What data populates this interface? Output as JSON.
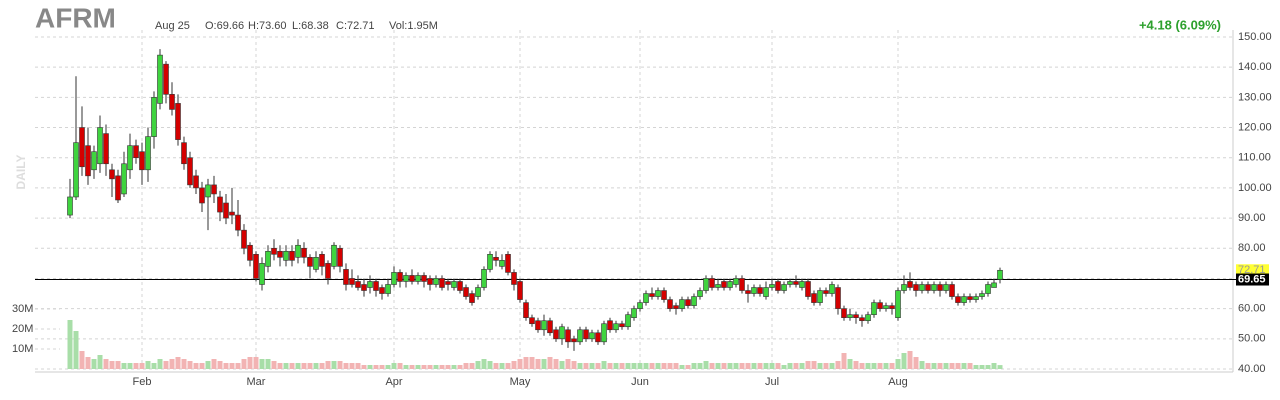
{
  "chart_data": {
    "type": "candlestick",
    "title": "AFRM",
    "date": "Aug 25",
    "ohlc_labels": [
      "O:69.66",
      "H:73.60",
      "L:68.38",
      "C:72.71"
    ],
    "volume_label": "Vol:1.95M",
    "change": "+4.18 (6.09%)",
    "period": "DAILY",
    "up_color": "#3fd43f",
    "down_color": "#d40000",
    "volume_up_color": "#a8dea8",
    "volume_down_color": "#f2b3b3",
    "grid": true,
    "categories": [
      null,
      null,
      null,
      null,
      null,
      null,
      null,
      null,
      null,
      null,
      null,
      null,
      "Feb",
      null,
      null,
      null,
      null,
      null,
      null,
      null,
      null,
      null,
      null,
      null,
      null,
      null,
      null,
      null,
      null,
      null,
      null,
      "Mar",
      null,
      null,
      null,
      null,
      null,
      null,
      null,
      null,
      null,
      null,
      null,
      null,
      null,
      null,
      null,
      null,
      null,
      null,
      null,
      null,
      null,
      null,
      "Apr",
      null,
      null,
      null,
      null,
      null,
      null,
      null,
      null,
      null,
      null,
      null,
      null,
      null,
      null,
      null,
      null,
      null,
      null,
      null,
      null,
      "May",
      null,
      null,
      null,
      null,
      null,
      null,
      null,
      null,
      null,
      null,
      null,
      null,
      null,
      null,
      null,
      null,
      null,
      null,
      null,
      "Jun",
      null,
      null,
      null,
      null,
      null,
      null,
      null,
      null,
      null,
      null,
      null,
      null,
      null,
      null,
      null,
      null,
      null,
      null,
      null,
      null,
      null,
      "Jul",
      null,
      null,
      null,
      null,
      null,
      null,
      null,
      null,
      null,
      null,
      null,
      null,
      null,
      null,
      null,
      null,
      null,
      null,
      null,
      null,
      "Aug",
      null,
      null,
      null,
      null,
      null,
      null,
      null,
      null,
      null,
      null,
      null,
      null,
      null,
      null,
      null,
      null,
      null
    ],
    "open": [
      91,
      97,
      120,
      114,
      106,
      108,
      118,
      106,
      104,
      98,
      106,
      114,
      112,
      106,
      117,
      128,
      141,
      131,
      128,
      115,
      110,
      104,
      100,
      97,
      101,
      97,
      95,
      92,
      91,
      86,
      81,
      78,
      68,
      74,
      80,
      79,
      76,
      79,
      77,
      80,
      77,
      73,
      78,
      75,
      74,
      80,
      73,
      70,
      69,
      68,
      67,
      69,
      67,
      65,
      68,
      72,
      69,
      71,
      69,
      71,
      70,
      68,
      70,
      69,
      67,
      69,
      67,
      65,
      64,
      67,
      73,
      77,
      74,
      78,
      72,
      69,
      62,
      57,
      56,
      53,
      56,
      53,
      50,
      53,
      50,
      49,
      53,
      50,
      52,
      49,
      56,
      53,
      55,
      54,
      57,
      60,
      62,
      65,
      64,
      66,
      63,
      61,
      60,
      63,
      61,
      64,
      66,
      70,
      67,
      69,
      67,
      68,
      70,
      66,
      65,
      67,
      64,
      67,
      69,
      66,
      68,
      69,
      67,
      69,
      65,
      62,
      66,
      65,
      67,
      60,
      57,
      58,
      57,
      56,
      58,
      62,
      60,
      61,
      57,
      66,
      69,
      68,
      66,
      68,
      66,
      68,
      66,
      68,
      64,
      62,
      64,
      63,
      64,
      65,
      67,
      69.66
    ],
    "high": [
      103,
      137,
      127,
      120,
      114,
      124,
      121,
      108,
      106,
      112,
      118,
      116,
      115,
      120,
      132,
      146,
      142,
      135,
      131,
      117,
      112,
      106,
      102,
      103,
      104,
      99,
      98,
      100,
      96,
      88,
      82,
      79,
      77,
      81,
      83,
      81,
      81,
      81,
      83,
      82,
      78,
      79,
      79,
      76,
      82,
      81,
      75,
      73,
      71,
      70,
      71,
      70,
      68,
      70,
      74,
      73,
      72,
      73,
      72,
      72,
      71,
      71,
      71,
      70,
      70,
      70,
      68,
      66,
      68,
      74,
      79,
      79,
      78,
      79,
      73,
      70,
      63,
      58,
      57,
      58,
      57,
      54,
      55,
      54,
      51,
      54,
      54,
      53,
      53,
      56,
      57,
      56,
      56,
      59,
      61,
      63,
      66,
      67,
      67,
      67,
      64,
      62,
      64,
      64,
      65,
      67,
      71,
      71,
      70,
      70,
      70,
      71,
      71,
      68,
      68,
      68,
      69,
      70,
      70,
      69,
      70,
      71,
      70,
      70,
      66,
      67,
      67,
      69,
      68,
      61,
      60,
      59,
      58,
      59,
      63,
      63,
      62,
      62,
      67,
      71,
      72,
      69,
      69,
      69,
      69,
      69,
      69,
      69,
      65,
      65,
      65,
      65,
      66,
      69,
      70,
      73.6
    ],
    "low": [
      90,
      96,
      104,
      101,
      103,
      105,
      104,
      97,
      95,
      97,
      103,
      108,
      101,
      102,
      113,
      126,
      128,
      124,
      114,
      106,
      100,
      98,
      92,
      86,
      95,
      89,
      88,
      88,
      84,
      78,
      74,
      69,
      66,
      72,
      76,
      74,
      74,
      74,
      75,
      75,
      70,
      72,
      71,
      68,
      73,
      72,
      66,
      67,
      66,
      64,
      65,
      64,
      63,
      64,
      67,
      67,
      67,
      68,
      68,
      67,
      66,
      67,
      66,
      66,
      66,
      65,
      63,
      61,
      63,
      66,
      72,
      74,
      73,
      71,
      66,
      62,
      56,
      54,
      52,
      51,
      51,
      49,
      48,
      47,
      46,
      48,
      49,
      49,
      48,
      48,
      52,
      52,
      53,
      53,
      56,
      59,
      61,
      63,
      63,
      62,
      59,
      58,
      59,
      60,
      60,
      63,
      65,
      66,
      66,
      66,
      66,
      67,
      65,
      62,
      64,
      64,
      63,
      66,
      65,
      65,
      67,
      67,
      66,
      63,
      61,
      61,
      64,
      64,
      58,
      56,
      56,
      55,
      54,
      55,
      57,
      59,
      59,
      58,
      56,
      65,
      66,
      64,
      65,
      65,
      65,
      64,
      65,
      63,
      61,
      61,
      62,
      62,
      63,
      64,
      67,
      68.38
    ],
    "close": [
      97,
      115,
      107,
      104,
      112,
      120,
      108,
      103,
      96,
      108,
      114,
      110,
      106,
      117,
      130,
      144,
      131,
      126,
      116,
      108,
      101,
      100,
      95,
      101,
      98,
      92,
      90,
      91,
      86,
      80,
      76,
      70,
      75,
      79,
      78,
      77,
      79,
      76,
      81,
      77,
      74,
      77,
      74,
      70,
      81,
      74,
      68,
      68,
      67,
      66,
      69,
      66,
      65,
      68,
      72,
      69,
      71,
      69,
      71,
      69,
      68,
      70,
      67,
      68,
      69,
      66,
      64,
      62,
      67,
      73,
      78,
      76,
      76,
      72,
      68,
      63,
      57,
      55,
      53,
      56,
      52,
      50,
      54,
      49,
      49,
      53,
      50,
      52,
      49,
      55,
      53,
      55,
      54,
      58,
      60,
      62,
      65,
      64,
      66,
      63,
      60,
      60,
      63,
      61,
      64,
      66,
      70,
      67,
      68,
      67,
      69,
      70,
      66,
      65,
      67,
      65,
      67,
      68,
      66,
      68,
      69,
      68,
      69,
      64,
      62,
      66,
      65,
      68,
      60,
      57,
      58,
      57,
      56,
      58,
      62,
      60,
      61,
      60,
      66,
      68,
      67,
      66,
      68,
      66,
      68,
      66,
      68,
      64,
      62,
      64,
      63,
      64,
      65,
      68,
      68.53,
      72.71
    ],
    "volume": [
      24.5,
      19,
      9,
      6,
      5,
      7,
      5,
      4,
      4,
      3,
      3,
      3,
      3,
      4,
      3,
      5,
      4,
      5,
      6,
      5,
      4,
      3,
      3,
      4,
      5,
      4,
      3,
      3,
      3,
      5,
      6,
      6,
      5,
      5,
      4,
      3,
      3,
      3,
      3,
      3,
      3,
      3,
      3,
      4,
      4,
      4,
      3,
      3,
      3,
      2,
      2,
      2,
      2,
      2,
      3,
      3,
      2,
      2,
      2,
      2,
      2,
      2,
      2,
      2,
      2,
      2,
      3,
      3,
      4,
      5,
      4,
      3,
      3,
      3,
      4,
      5,
      6,
      6,
      5,
      5,
      6,
      5,
      4,
      5,
      4,
      3,
      3,
      3,
      3,
      4,
      3,
      3,
      3,
      3,
      3,
      3,
      3,
      3,
      3,
      3,
      3,
      3,
      2,
      2,
      3,
      3,
      4,
      3,
      3,
      3,
      3,
      3,
      3,
      3,
      3,
      3,
      3,
      3,
      3,
      2,
      3,
      3,
      3,
      4,
      4,
      3,
      3,
      3,
      4,
      8,
      5,
      4,
      3,
      3,
      3,
      3,
      3,
      3,
      5,
      8,
      9,
      6,
      4,
      3,
      3,
      3,
      3,
      3,
      3,
      3,
      3,
      2,
      2,
      2,
      3,
      1.95
    ],
    "reference_line": 69.65,
    "ylim": [
      40,
      150
    ],
    "yticks": [
      {
        "value": 150,
        "label": "150.00"
      },
      {
        "value": 140,
        "label": "140.00"
      },
      {
        "value": 130,
        "label": "130.00"
      },
      {
        "value": 120,
        "label": "120.00"
      },
      {
        "value": 110,
        "label": "110.00"
      },
      {
        "value": 100,
        "label": "100.00"
      },
      {
        "value": 90,
        "label": "90.00"
      },
      {
        "value": 80,
        "label": "80.00"
      },
      {
        "value": 70,
        "label": "70.00"
      },
      {
        "value": 60,
        "label": "60.00"
      },
      {
        "value": 50,
        "label": "50.00"
      },
      {
        "value": 40,
        "label": "40.00"
      }
    ],
    "y2lim": [
      0,
      30
    ],
    "y2ticks": [
      {
        "value": 30,
        "label": "30M"
      },
      {
        "value": 20,
        "label": "20M"
      },
      {
        "value": 10,
        "label": "10M"
      }
    ]
  }
}
